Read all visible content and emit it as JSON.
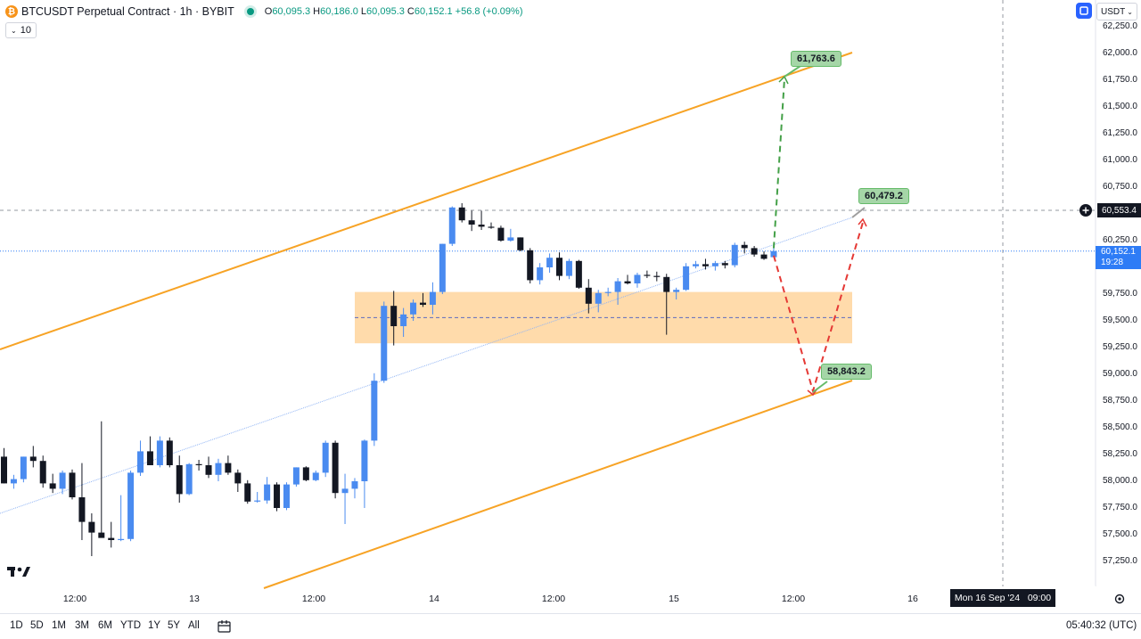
{
  "legend": {
    "title": "BTCUSDT Perpetual Contract · 1h · BYBIT",
    "open_key": "O",
    "open": "60,095.3",
    "high_key": "H",
    "high": "60,186.0",
    "low_key": "L",
    "low": "60,095.3",
    "close_key": "C",
    "close": "60,152.1",
    "change": "+56.8 (+0.09%)"
  },
  "volume_pill": {
    "value": "10"
  },
  "currency": {
    "label": "USDT"
  },
  "price_axis": {
    "labels": [
      "62,250.0",
      "62,000.0",
      "61,750.0",
      "61,500.0",
      "61,250.0",
      "61,000.0",
      "60,750.0",
      "60,250.0",
      "59,750.0",
      "59,500.0",
      "59,250.0",
      "59,000.0",
      "58,750.0",
      "58,500.0",
      "58,250.0",
      "58,000.0",
      "57,750.0",
      "57,500.0",
      "57,250.0"
    ],
    "crosshair_price": "60,553.4",
    "last_price": "60,152.1",
    "countdown": "19:28"
  },
  "time_axis": {
    "labels": [
      "12:00",
      "13",
      "12:00",
      "14",
      "12:00",
      "15",
      "12:00",
      "16"
    ],
    "crosshair_time": "Mon 16 Sep '24   09:00"
  },
  "targets": {
    "upper": "61,763.6",
    "middle": "60,479.2",
    "lower": "58,843.2"
  },
  "bottom_bar": {
    "timeframes": [
      "1D",
      "5D",
      "1M",
      "3M",
      "6M",
      "YTD",
      "1Y",
      "5Y",
      "All"
    ],
    "clock": "05:40:32 (UTC)"
  },
  "colors": {
    "bull": "#4a8bf0",
    "bear": "#131722",
    "channel": "#f7a325",
    "zone": "#ffd9a6",
    "up_path": "#43a047",
    "down_path": "#e53935",
    "trendline": "#90b4f4",
    "accent": "#2962ff"
  },
  "chart_data": {
    "type": "candlestick",
    "symbol": "BTCUSDT Perpetual Contract",
    "interval": "1h",
    "ylim": [
      57100,
      62300
    ],
    "candles": [
      {
        "o": 58230,
        "h": 58310,
        "l": 57980,
        "c": 57980
      },
      {
        "o": 57980,
        "h": 58060,
        "l": 57930,
        "c": 58020
      },
      {
        "o": 58020,
        "h": 58230,
        "l": 57990,
        "c": 58230
      },
      {
        "o": 58230,
        "h": 58330,
        "l": 58130,
        "c": 58190
      },
      {
        "o": 58190,
        "h": 58240,
        "l": 57940,
        "c": 57980
      },
      {
        "o": 57980,
        "h": 58070,
        "l": 57890,
        "c": 57930
      },
      {
        "o": 57930,
        "h": 58100,
        "l": 57880,
        "c": 58080
      },
      {
        "o": 58080,
        "h": 58110,
        "l": 57830,
        "c": 57850
      },
      {
        "o": 57850,
        "h": 58170,
        "l": 57450,
        "c": 57620
      },
      {
        "o": 57620,
        "h": 57700,
        "l": 57300,
        "c": 57520
      },
      {
        "o": 57520,
        "h": 58560,
        "l": 57480,
        "c": 57470
      },
      {
        "o": 57470,
        "h": 57620,
        "l": 57380,
        "c": 57450
      },
      {
        "o": 57450,
        "h": 57870,
        "l": 57440,
        "c": 57460
      },
      {
        "o": 57460,
        "h": 58100,
        "l": 57440,
        "c": 58080
      },
      {
        "o": 58080,
        "h": 58380,
        "l": 58050,
        "c": 58280
      },
      {
        "o": 58280,
        "h": 58420,
        "l": 58160,
        "c": 58150
      },
      {
        "o": 58150,
        "h": 58420,
        "l": 58130,
        "c": 58380
      },
      {
        "o": 58380,
        "h": 58410,
        "l": 58130,
        "c": 58150
      },
      {
        "o": 58150,
        "h": 58240,
        "l": 57800,
        "c": 57880
      },
      {
        "o": 57880,
        "h": 58170,
        "l": 57870,
        "c": 58160
      },
      {
        "o": 58160,
        "h": 58200,
        "l": 58100,
        "c": 58150
      },
      {
        "o": 58150,
        "h": 58230,
        "l": 58030,
        "c": 58060
      },
      {
        "o": 58060,
        "h": 58210,
        "l": 58000,
        "c": 58170
      },
      {
        "o": 58170,
        "h": 58240,
        "l": 58060,
        "c": 58080
      },
      {
        "o": 58080,
        "h": 58110,
        "l": 57900,
        "c": 57980
      },
      {
        "o": 57980,
        "h": 58010,
        "l": 57790,
        "c": 57810
      },
      {
        "o": 57810,
        "h": 57900,
        "l": 57800,
        "c": 57820
      },
      {
        "o": 57820,
        "h": 58040,
        "l": 57790,
        "c": 57970
      },
      {
        "o": 57970,
        "h": 57990,
        "l": 57720,
        "c": 57750
      },
      {
        "o": 57750,
        "h": 57990,
        "l": 57730,
        "c": 57970
      },
      {
        "o": 57970,
        "h": 58130,
        "l": 57950,
        "c": 58130
      },
      {
        "o": 58130,
        "h": 58140,
        "l": 58000,
        "c": 58010
      },
      {
        "o": 58010,
        "h": 58100,
        "l": 58000,
        "c": 58080
      },
      {
        "o": 58080,
        "h": 58380,
        "l": 58040,
        "c": 58360
      },
      {
        "o": 58360,
        "h": 58380,
        "l": 57840,
        "c": 57890
      },
      {
        "o": 57890,
        "h": 58070,
        "l": 57600,
        "c": 57930
      },
      {
        "o": 57930,
        "h": 58030,
        "l": 57840,
        "c": 58000
      },
      {
        "o": 58000,
        "h": 58390,
        "l": 57750,
        "c": 58380
      },
      {
        "o": 58380,
        "h": 59010,
        "l": 58330,
        "c": 58940
      },
      {
        "o": 58940,
        "h": 59680,
        "l": 58920,
        "c": 59640
      },
      {
        "o": 59640,
        "h": 59780,
        "l": 59270,
        "c": 59450
      },
      {
        "o": 59450,
        "h": 59620,
        "l": 59350,
        "c": 59560
      },
      {
        "o": 59560,
        "h": 59700,
        "l": 59500,
        "c": 59670
      },
      {
        "o": 59670,
        "h": 59760,
        "l": 59630,
        "c": 59650
      },
      {
        "o": 59650,
        "h": 59860,
        "l": 59560,
        "c": 59770
      },
      {
        "o": 59770,
        "h": 60220,
        "l": 59750,
        "c": 60220
      },
      {
        "o": 60220,
        "h": 60570,
        "l": 60200,
        "c": 60560
      },
      {
        "o": 60560,
        "h": 60600,
        "l": 60420,
        "c": 60440
      },
      {
        "o": 60440,
        "h": 60530,
        "l": 60340,
        "c": 60400
      },
      {
        "o": 60400,
        "h": 60530,
        "l": 60350,
        "c": 60380
      },
      {
        "o": 60380,
        "h": 60420,
        "l": 60360,
        "c": 60370
      },
      {
        "o": 60370,
        "h": 60390,
        "l": 60240,
        "c": 60250
      },
      {
        "o": 60250,
        "h": 60360,
        "l": 60240,
        "c": 60280
      },
      {
        "o": 60280,
        "h": 60280,
        "l": 60150,
        "c": 60160
      },
      {
        "o": 60160,
        "h": 60180,
        "l": 59850,
        "c": 59880
      },
      {
        "o": 59880,
        "h": 60040,
        "l": 59840,
        "c": 60000
      },
      {
        "o": 60000,
        "h": 60130,
        "l": 59950,
        "c": 60090
      },
      {
        "o": 60090,
        "h": 60140,
        "l": 59880,
        "c": 59920
      },
      {
        "o": 59920,
        "h": 60080,
        "l": 59890,
        "c": 60060
      },
      {
        "o": 60060,
        "h": 60070,
        "l": 59800,
        "c": 59810
      },
      {
        "o": 59810,
        "h": 59890,
        "l": 59570,
        "c": 59660
      },
      {
        "o": 59660,
        "h": 59790,
        "l": 59580,
        "c": 59760
      },
      {
        "o": 59760,
        "h": 59810,
        "l": 59730,
        "c": 59770
      },
      {
        "o": 59770,
        "h": 59900,
        "l": 59650,
        "c": 59870
      },
      {
        "o": 59870,
        "h": 59930,
        "l": 59840,
        "c": 59850
      },
      {
        "o": 59850,
        "h": 59950,
        "l": 59810,
        "c": 59930
      },
      {
        "o": 59930,
        "h": 59970,
        "l": 59900,
        "c": 59920
      },
      {
        "o": 59920,
        "h": 59960,
        "l": 59870,
        "c": 59910
      },
      {
        "o": 59910,
        "h": 59940,
        "l": 59370,
        "c": 59770
      },
      {
        "o": 59770,
        "h": 59810,
        "l": 59700,
        "c": 59790
      },
      {
        "o": 59790,
        "h": 60040,
        "l": 59780,
        "c": 60010
      },
      {
        "o": 60010,
        "h": 60060,
        "l": 59990,
        "c": 60030
      },
      {
        "o": 60030,
        "h": 60080,
        "l": 59980,
        "c": 60010
      },
      {
        "o": 60010,
        "h": 60060,
        "l": 59970,
        "c": 60040
      },
      {
        "o": 60040,
        "h": 60060,
        "l": 59990,
        "c": 60020
      },
      {
        "o": 60020,
        "h": 60230,
        "l": 60000,
        "c": 60210
      },
      {
        "o": 60210,
        "h": 60240,
        "l": 60130,
        "c": 60180
      },
      {
        "o": 60180,
        "h": 60200,
        "l": 60100,
        "c": 60120
      },
      {
        "o": 60120,
        "h": 60150,
        "l": 60070,
        "c": 60080
      },
      {
        "o": 60095.3,
        "h": 60186.0,
        "l": 60095.3,
        "c": 60152.1
      }
    ],
    "zone": {
      "from": 59290,
      "to": 59770,
      "mid": 59530
    },
    "projections": {
      "upper": 61763.6,
      "middle": 60479.2,
      "lower": 58843.2
    }
  }
}
